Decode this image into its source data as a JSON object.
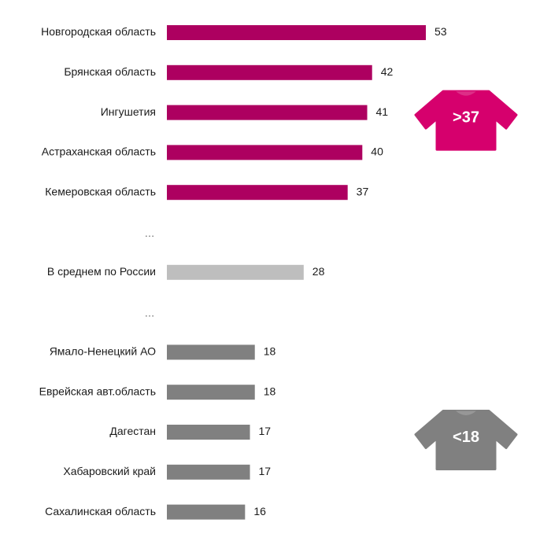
{
  "chart_data": {
    "type": "bar",
    "orientation": "horizontal",
    "title": "",
    "xlabel": "",
    "ylabel": "",
    "xlim": [
      0,
      53
    ],
    "grid": false,
    "legend": "none",
    "rows": [
      {
        "label": "Новгородская область",
        "value": 53,
        "group": "high"
      },
      {
        "label": "Брянская область",
        "value": 42,
        "group": "high"
      },
      {
        "label": "Ингушетия",
        "value": 41,
        "group": "high"
      },
      {
        "label": "Астраханская область",
        "value": 40,
        "group": "high"
      },
      {
        "label": "Кемеровская область",
        "value": 37,
        "group": "high"
      },
      {
        "label": "…",
        "gap": true
      },
      {
        "label": "В среднем по России",
        "value": 28,
        "group": "average"
      },
      {
        "label": "…",
        "gap": true
      },
      {
        "label": "Ямало-Ненецкий АО",
        "value": 18,
        "group": "low"
      },
      {
        "label": "Еврейская авт.область",
        "value": 18,
        "group": "low"
      },
      {
        "label": "Дагестан",
        "value": 17,
        "group": "low"
      },
      {
        "label": "Хабаровский край",
        "value": 17,
        "group": "low"
      },
      {
        "label": "Сахалинская область",
        "value": 16,
        "group": "low"
      }
    ],
    "colors": {
      "high": "#ad0060",
      "average": "#bebebe",
      "low": "#808080"
    },
    "badges": [
      {
        "text": ">37",
        "group": "high",
        "color": "#d6006d",
        "icon": "tshirt-icon"
      },
      {
        "text": "<18",
        "group": "low",
        "color": "#808080",
        "icon": "tshirt-icon"
      }
    ]
  }
}
